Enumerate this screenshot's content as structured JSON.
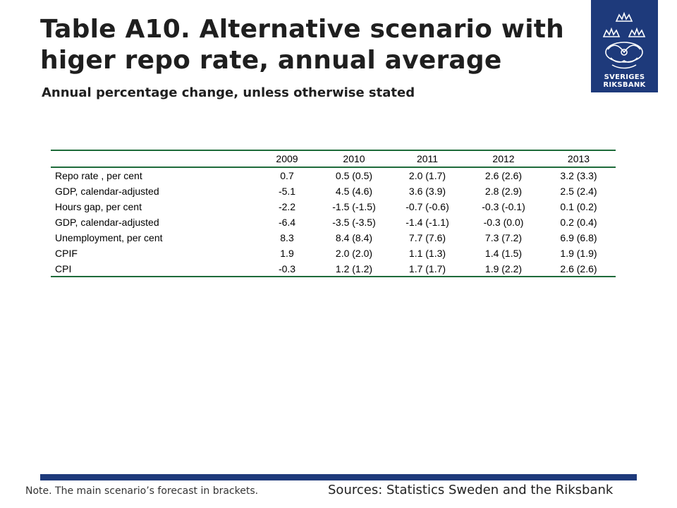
{
  "header": {
    "title_line1": "Table A10. Alternative scenario with",
    "title_line2": "higer repo rate, annual average",
    "subtitle": "Annual percentage change, unless otherwise stated"
  },
  "logo": {
    "line1": "SVERIGES",
    "line2": "RIKSBANK"
  },
  "table": {
    "columns": [
      "",
      "2009",
      "2010",
      "2011",
      "2012",
      "2013"
    ],
    "rows": [
      [
        "Repo rate , per cent",
        "0.7",
        "0.5 (0.5)",
        "2.0 (1.7)",
        "2.6 (2.6)",
        "3.2 (3.3)"
      ],
      [
        "GDP, calendar-adjusted",
        "-5.1",
        "4.5 (4.6)",
        "3.6 (3.9)",
        "2.8 (2.9)",
        "2.5 (2.4)"
      ],
      [
        "Hours gap, per cent",
        "-2.2",
        "-1.5 (-1.5)",
        "-0.7 (-0.6)",
        "-0.3 (-0.1)",
        "0.1 (0.2)"
      ],
      [
        "GDP, calendar-adjusted",
        "-6.4",
        "-3.5 (-3.5)",
        "-1.4 (-1.1)",
        "-0.3 (0.0)",
        "0.2 (0.4)"
      ],
      [
        "Unemployment, per cent",
        "8.3",
        "8.4 (8.4)",
        "7.7 (7.6)",
        "7.3 (7.2)",
        "6.9 (6.8)"
      ],
      [
        "CPIF",
        "1.9",
        "2.0 (2.0)",
        "1.1 (1.3)",
        "1.4 (1.5)",
        "1.9 (1.9)"
      ],
      [
        "CPI",
        "-0.3",
        "1.2 (1.2)",
        "1.7 (1.7)",
        "1.9 (2.2)",
        "2.6 (2.6)"
      ]
    ]
  },
  "footer": {
    "note": "Note. The main scenario’s forecast in brackets.",
    "sources": "Sources: Statistics Sweden and the Riksbank"
  },
  "colors": {
    "brand_blue": "#1e3a7b",
    "rule_green": "#1e6b3a"
  }
}
